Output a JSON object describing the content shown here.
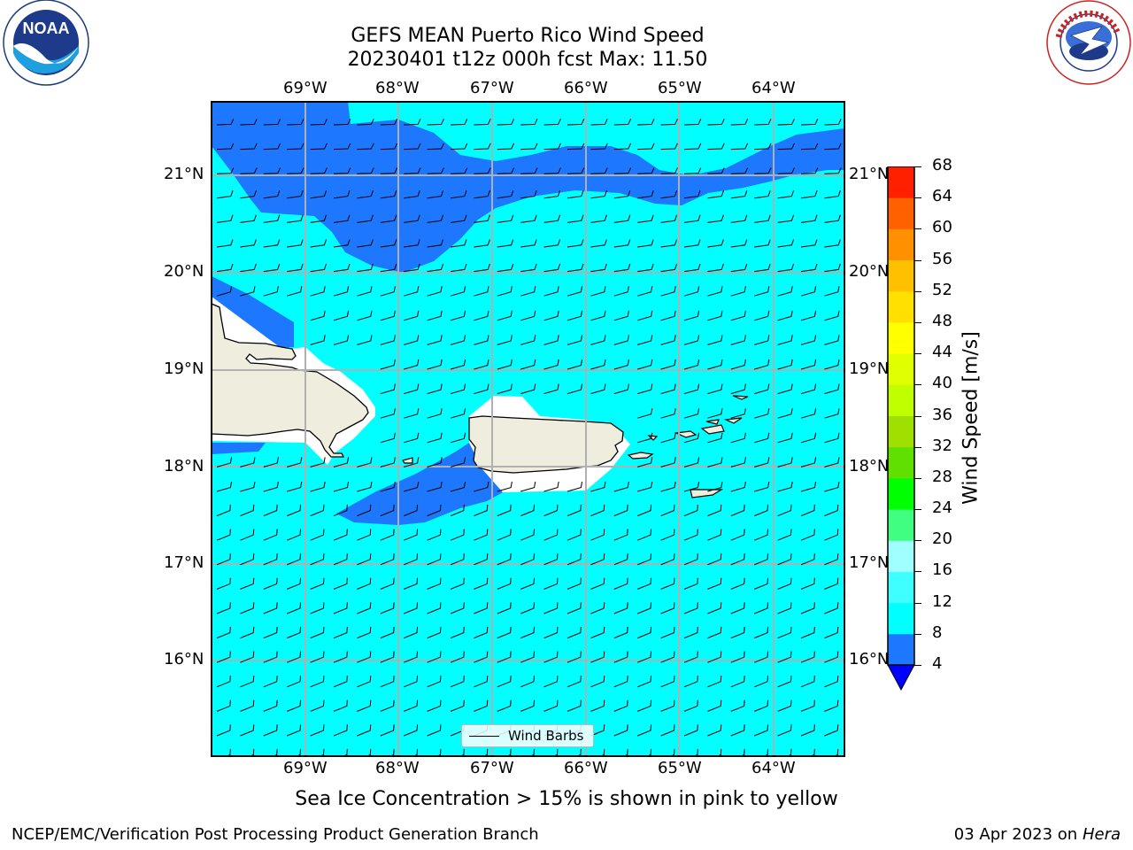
{
  "header": {
    "title_line1": "GEFS MEAN Puerto Rico Wind Speed",
    "title_line2": "20230401 t12z 000h fcst   Max: 11.50"
  },
  "logos": {
    "noara_text": "NOAA",
    "noaa_ring_text": "NATIONAL OCEANIC AND ATMOSPHERIC ADMINISTRATION · U.S. DEPARTMENT OF COMMERCE",
    "nws_ring_text": "NATIONAL WEATHER SERVICE"
  },
  "map": {
    "lon_labels": [
      "69°W",
      "68°W",
      "67°W",
      "66°W",
      "65°W",
      "64°W"
    ],
    "lat_labels": [
      "21°N",
      "20°N",
      "19°N",
      "18°N",
      "17°N",
      "16°N"
    ],
    "legend_label": "Wind Barbs",
    "colors": {
      "land": "#efedde",
      "wind_4_8": "#1e78ff",
      "wind_8_12": "#00ffff",
      "coast": "#000000",
      "grid": "#b0b0b0"
    }
  },
  "colorbar": {
    "label": "Wind Speed [m/s]",
    "ticks": [
      "4",
      "8",
      "12",
      "16",
      "20",
      "24",
      "28",
      "32",
      "36",
      "40",
      "44",
      "48",
      "52",
      "56",
      "60",
      "64",
      "68"
    ],
    "colors": [
      "#1e78ff",
      "#00ffff",
      "#40ffff",
      "#a0ffff",
      "#40ff80",
      "#00ff00",
      "#60e000",
      "#a0e000",
      "#c0ff00",
      "#e0ff00",
      "#ffff00",
      "#ffe000",
      "#ffc000",
      "#ff9000",
      "#ff6000",
      "#ff2000"
    ],
    "under_color": "#0000ff"
  },
  "note": "Sea Ice Concentration > 15% is shown in pink to yellow",
  "footer": {
    "left": "NCEP/EMC/Verification Post Processing Product Generation Branch",
    "date": "03 Apr 2023 on ",
    "machine": "Hera"
  }
}
